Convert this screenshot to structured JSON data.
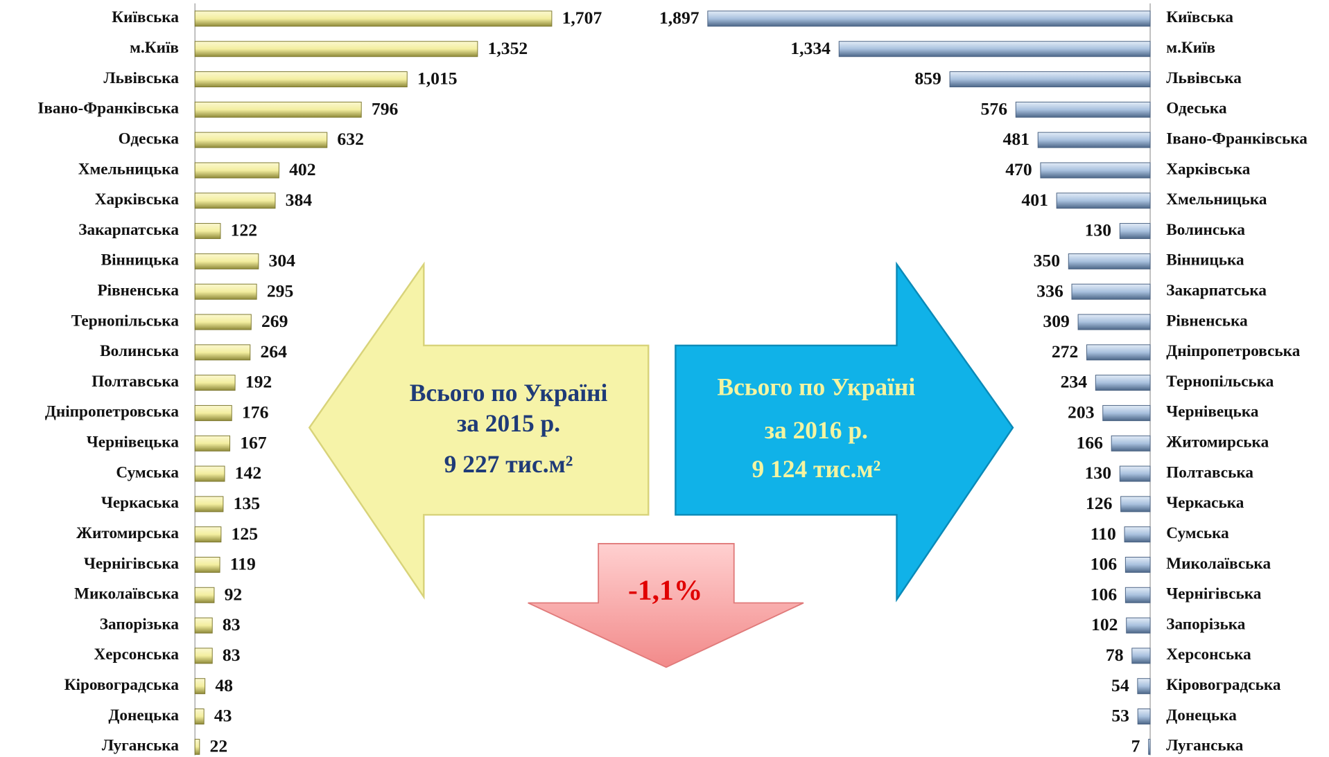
{
  "chart_data": [
    {
      "type": "bar",
      "orientation": "horizontal",
      "color": "#f3eea0",
      "categories": [
        "Київська",
        "м.Київ",
        "Львівська",
        "Івано-Франківська",
        "Одеська",
        "Хмельницька",
        "Харківська",
        "Закарпатська",
        "Вінницька",
        "Рівненська",
        "Тернопільська",
        "Волинська",
        "Полтавська",
        "Дніпропетровська",
        "Чернівецька",
        "Сумська",
        "Черкаська",
        "Житомирська",
        "Чернігівська",
        "Миколаївська",
        "Запорізька",
        "Херсонська",
        "Кіровоградська",
        "Донецька",
        "Луганська"
      ],
      "values": [
        1707,
        1352,
        1015,
        796,
        632,
        402,
        384,
        122,
        304,
        295,
        269,
        264,
        192,
        176,
        167,
        142,
        135,
        125,
        119,
        92,
        83,
        83,
        48,
        43,
        22
      ],
      "value_labels": [
        "1,707",
        "1,352",
        "1,015",
        "796",
        "632",
        "402",
        "384",
        "122",
        "304",
        "295",
        "269",
        "264",
        "192",
        "176",
        "167",
        "142",
        "135",
        "125",
        "119",
        "92",
        "83",
        "83",
        "48",
        "43",
        "22"
      ]
    },
    {
      "type": "bar",
      "orientation": "horizontal",
      "color": "#a9c1de",
      "categories": [
        "Київська",
        "м.Київ",
        "Львівська",
        "Одеська",
        "Івано-Франківська",
        "Харківська",
        "Хмельницька",
        "Волинська",
        "Вінницька",
        "Закарпатська",
        "Рівненська",
        "Дніпропетровська",
        "Тернопільська",
        "Чернівецька",
        "Житомирська",
        "Полтавська",
        "Черкаська",
        "Сумська",
        "Миколаївська",
        "Чернігівська",
        "Запорізька",
        "Херсонська",
        "Кіровоградська",
        "Донецька",
        "Луганська"
      ],
      "values": [
        1897,
        1334,
        859,
        576,
        481,
        470,
        401,
        130,
        350,
        336,
        309,
        272,
        234,
        203,
        166,
        130,
        126,
        110,
        106,
        106,
        102,
        78,
        54,
        53,
        7
      ],
      "value_labels": [
        "1,897",
        "1,334",
        "859",
        "576",
        "481",
        "470",
        "401",
        "130",
        "350",
        "336",
        "309",
        "272",
        "234",
        "203",
        "166",
        "130",
        "126",
        "110",
        "106",
        "106",
        "102",
        "78",
        "54",
        "53",
        "7"
      ]
    }
  ],
  "arrows": {
    "left": {
      "lines": [
        "Всього по Україні",
        "за 2015 р.",
        "9 227 тис.м²"
      ]
    },
    "right": {
      "lines": [
        "Всього по Україні",
        "за 2016 р.",
        "9 124 тис.м²"
      ]
    },
    "down": {
      "label": "-1,1%"
    }
  }
}
